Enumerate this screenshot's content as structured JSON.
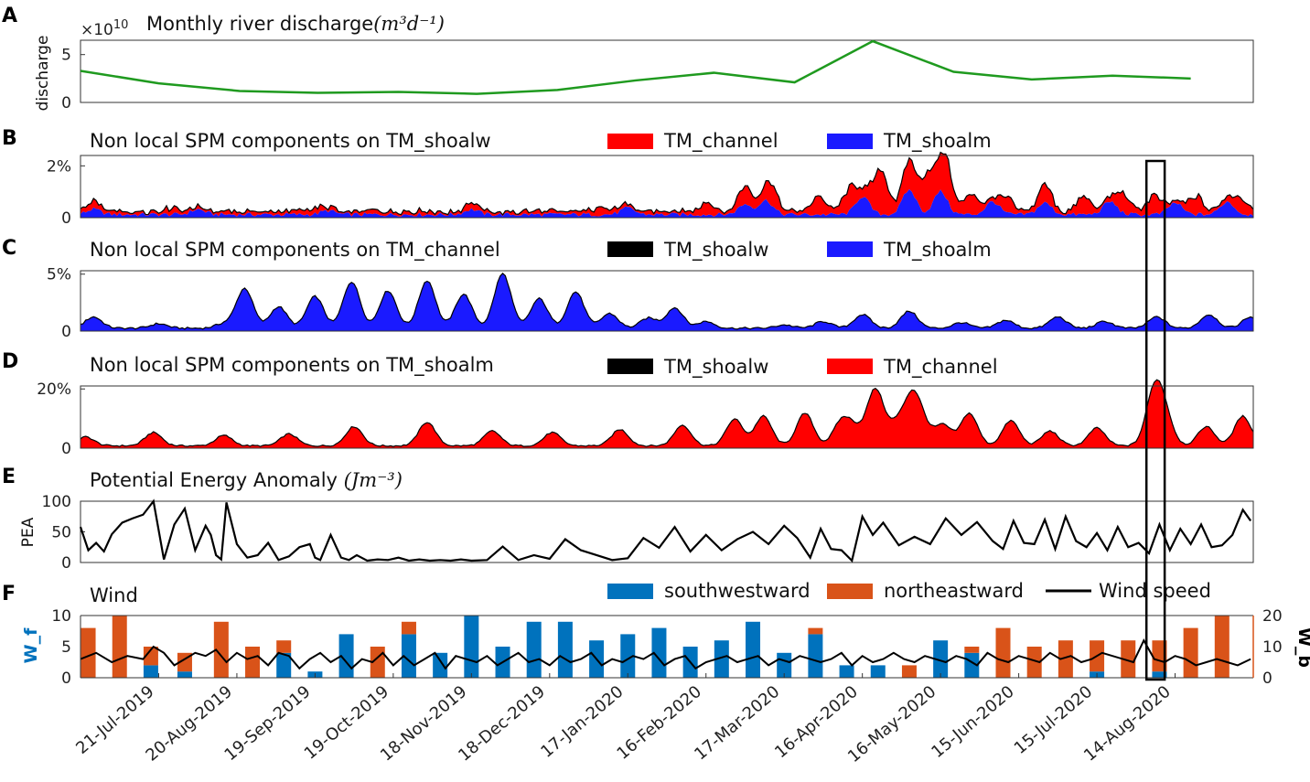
{
  "figure": {
    "panel_letters": [
      "A",
      "B",
      "C",
      "D",
      "E",
      "F"
    ],
    "x_dates": [
      "21-Jul-2019",
      "20-Aug-2019",
      "19-Sep-2019",
      "19-Oct-2019",
      "18-Nov-2019",
      "18-Dec-2019",
      "17-Jan-2020",
      "16-Feb-2020",
      "17-Mar-2020",
      "16-Apr-2020",
      "16-May-2020",
      "15-Jun-2020",
      "15-Jul-2020",
      "14-Aug-2020"
    ],
    "highlight_box": {
      "from_day": 409,
      "to_day": 416
    }
  },
  "colors": {
    "green": "#1f9a1f",
    "red": "#ff0000",
    "blue": "#1a1aff",
    "black": "#000000",
    "wind_sw": "#0072bd",
    "wind_ne": "#d95319",
    "wind_b_axis": "#d95319"
  },
  "chart_data": [
    {
      "id": "A",
      "type": "line",
      "title": "Monthly river discharge",
      "title_unit": "(m³d⁻¹)",
      "exponent_base": "×10",
      "exponent_power": "10",
      "ylabel": "discharge",
      "ylim": [
        0,
        6.5
      ],
      "yticks": [
        "0",
        "5"
      ],
      "x_day": [
        0,
        30,
        61,
        91,
        122,
        152,
        183,
        213,
        243,
        274,
        304,
        335,
        365,
        396,
        426
      ],
      "values": [
        3.3,
        2.0,
        1.2,
        1.0,
        1.1,
        0.9,
        1.3,
        2.3,
        3.1,
        2.1,
        6.4,
        3.2,
        2.4,
        2.8,
        2.5
      ]
    },
    {
      "id": "B",
      "type": "area",
      "title": "Non local SPM components on TM_shoalw",
      "legend": [
        {
          "label": "TM_channel",
          "color": "#ff0000"
        },
        {
          "label": "TM_shoalm",
          "color": "#1a1aff"
        }
      ],
      "ylim": [
        0,
        2.4
      ],
      "yticks": [
        "0",
        "2%"
      ],
      "base": 0.12,
      "base_noise": 0.08,
      "series": [
        {
          "name": "TM_shoalm",
          "peaks": [
            [
              5,
              0.2
            ],
            [
              45,
              0.2
            ],
            [
              95,
              0.15
            ],
            [
              150,
              0.2
            ],
            [
              210,
              0.25
            ],
            [
              255,
              0.4
            ],
            [
              263,
              0.55
            ],
            [
              300,
              0.7
            ],
            [
              318,
              0.95
            ],
            [
              330,
              0.9
            ],
            [
              350,
              0.5
            ],
            [
              370,
              0.45
            ],
            [
              395,
              0.5
            ],
            [
              420,
              0.45
            ],
            [
              440,
              0.5
            ]
          ]
        },
        {
          "name": "TM_channel",
          "peaks": [
            [
              5,
              0.15
            ],
            [
              35,
              0.15
            ],
            [
              90,
              0.1
            ],
            [
              150,
              0.15
            ],
            [
              200,
              0.2
            ],
            [
              240,
              0.35
            ],
            [
              255,
              0.6
            ],
            [
              265,
              0.7
            ],
            [
              283,
              0.6
            ],
            [
              295,
              0.8
            ],
            [
              305,
              0.7
            ],
            [
              308,
              1.1
            ],
            [
              318,
              1.0
            ],
            [
              325,
              1.3
            ],
            [
              332,
              1.5
            ],
            [
              342,
              0.7
            ],
            [
              355,
              0.5
            ],
            [
              370,
              0.6
            ],
            [
              385,
              0.6
            ],
            [
              400,
              0.6
            ],
            [
              412,
              0.6
            ],
            [
              428,
              0.6
            ],
            [
              445,
              0.5
            ]
          ]
        }
      ]
    },
    {
      "id": "C",
      "type": "area",
      "title": "Non local SPM components on TM_channel",
      "legend": [
        {
          "label": "TM_shoalw",
          "color": "#000000"
        },
        {
          "label": "TM_shoalm",
          "color": "#1a1aff"
        }
      ],
      "ylim": [
        0,
        5.3
      ],
      "yticks": [
        "0",
        "5%"
      ],
      "series": [
        {
          "name": "TM_shoalm",
          "base": 0.25,
          "peaks": [
            [
              5,
              1.0
            ],
            [
              30,
              0.4
            ],
            [
              55,
              0.4
            ],
            [
              63,
              3.5
            ],
            [
              76,
              1.9
            ],
            [
              90,
              2.8
            ],
            [
              104,
              4.1
            ],
            [
              118,
              3.3
            ],
            [
              133,
              4.2
            ],
            [
              147,
              3.0
            ],
            [
              162,
              4.8
            ],
            [
              176,
              2.6
            ],
            [
              190,
              3.2
            ],
            [
              203,
              1.3
            ],
            [
              218,
              0.9
            ],
            [
              228,
              1.8
            ],
            [
              240,
              0.6
            ],
            [
              270,
              0.3
            ],
            [
              285,
              0.6
            ],
            [
              300,
              1.2
            ],
            [
              318,
              1.5
            ],
            [
              338,
              0.5
            ],
            [
              355,
              0.7
            ],
            [
              375,
              1.0
            ],
            [
              393,
              0.6
            ],
            [
              413,
              1.0
            ],
            [
              433,
              1.2
            ],
            [
              449,
              1.0
            ]
          ]
        }
      ]
    },
    {
      "id": "D",
      "type": "area",
      "title": "Non local SPM components on TM_shoalm",
      "legend": [
        {
          "label": "TM_shoalw",
          "color": "#000000"
        },
        {
          "label": "TM_channel",
          "color": "#ff0000"
        }
      ],
      "ylim": [
        0,
        21
      ],
      "yticks": [
        "0",
        "20%"
      ],
      "series": [
        {
          "name": "TM_channel",
          "base": 0.8,
          "peaks": [
            [
              2,
              3.0
            ],
            [
              28,
              4.5
            ],
            [
              55,
              3.5
            ],
            [
              80,
              4.0
            ],
            [
              105,
              6.5
            ],
            [
              133,
              8.0
            ],
            [
              158,
              5.0
            ],
            [
              181,
              4.5
            ],
            [
              207,
              5.5
            ],
            [
              231,
              7.0
            ],
            [
              251,
              9.0
            ],
            [
              262,
              10.0
            ],
            [
              278,
              11.0
            ],
            [
              292,
              8.0
            ],
            [
              297,
              5.0
            ],
            [
              305,
              19.0
            ],
            [
              313,
              6.5
            ],
            [
              319,
              15.0
            ],
            [
              323,
              6.0
            ],
            [
              331,
              7.0
            ],
            [
              341,
              11.0
            ],
            [
              357,
              8.5
            ],
            [
              372,
              5.0
            ],
            [
              390,
              6.0
            ],
            [
              412,
              17.5
            ],
            [
              416,
              9.0
            ],
            [
              432,
              6.5
            ],
            [
              446,
              10.0
            ]
          ]
        }
      ]
    },
    {
      "id": "E",
      "type": "line",
      "title": "Potential Energy Anomaly",
      "title_unit": "(Jm⁻³)",
      "ylabel": "PEA",
      "ylim": [
        0,
        100
      ],
      "yticks": [
        "0",
        "50",
        "100"
      ],
      "x_day": [
        0,
        3,
        6,
        9,
        12,
        16,
        20,
        24,
        28,
        32,
        36,
        40,
        44,
        48,
        50,
        52,
        54,
        56,
        60,
        64,
        68,
        72,
        76,
        80,
        84,
        88,
        90,
        92,
        96,
        100,
        103,
        106,
        110,
        114,
        118,
        122,
        126,
        130,
        134,
        138,
        142,
        146,
        150,
        156,
        162,
        168,
        174,
        180,
        186,
        192,
        198,
        204,
        210,
        216,
        222,
        228,
        234,
        240,
        246,
        252,
        258,
        264,
        270,
        275,
        280,
        284,
        288,
        292,
        296,
        300,
        304,
        308,
        314,
        320,
        326,
        332,
        338,
        344,
        350,
        354,
        358,
        362,
        366,
        370,
        374,
        378,
        382,
        386,
        390,
        394,
        398,
        402,
        406,
        410,
        414,
        418,
        422,
        426,
        430,
        434,
        438,
        442,
        446,
        449
      ],
      "values": [
        58,
        20,
        32,
        18,
        46,
        65,
        72,
        78,
        100,
        5,
        62,
        88,
        20,
        60,
        45,
        12,
        5,
        98,
        30,
        8,
        12,
        32,
        4,
        10,
        25,
        30,
        8,
        4,
        45,
        8,
        4,
        12,
        3,
        5,
        4,
        8,
        3,
        5,
        3,
        4,
        3,
        5,
        3,
        4,
        26,
        4,
        12,
        6,
        38,
        20,
        12,
        4,
        7,
        40,
        24,
        58,
        18,
        45,
        20,
        38,
        50,
        30,
        60,
        40,
        8,
        55,
        22,
        20,
        3,
        75,
        45,
        65,
        28,
        42,
        30,
        72,
        45,
        66,
        35,
        22,
        68,
        32,
        30,
        70,
        22,
        75,
        35,
        25,
        48,
        20,
        58,
        25,
        32,
        15,
        62,
        20,
        55,
        30,
        62,
        25,
        28,
        45,
        86,
        68
      ]
    },
    {
      "id": "F",
      "type": "bar",
      "title": "Wind",
      "legend": [
        {
          "label": "southwestward",
          "color": "#0072bd"
        },
        {
          "label": "northeastward",
          "color": "#d95319"
        },
        {
          "label": "Wind speed",
          "color": "#000000"
        }
      ],
      "ylabel_left": "W_f",
      "ylabel_right": "W_b",
      "ylim_left": [
        0,
        10
      ],
      "yticks_left": [
        "0",
        "5",
        "10"
      ],
      "ylim_right": [
        0,
        20
      ],
      "yticks_right": [
        "0",
        "10",
        "20"
      ],
      "bars": [
        {
          "day": 3,
          "sw": 0,
          "ne": 8
        },
        {
          "day": 15,
          "sw": 0,
          "ne": 10
        },
        {
          "day": 27,
          "sw": 2,
          "ne": 3
        },
        {
          "day": 40,
          "sw": 1,
          "ne": 3
        },
        {
          "day": 54,
          "sw": 0,
          "ne": 9
        },
        {
          "day": 66,
          "sw": 0,
          "ne": 5
        },
        {
          "day": 78,
          "sw": 4,
          "ne": 2
        },
        {
          "day": 90,
          "sw": 1,
          "ne": 0
        },
        {
          "day": 102,
          "sw": 7,
          "ne": 0
        },
        {
          "day": 114,
          "sw": 0,
          "ne": 5
        },
        {
          "day": 126,
          "sw": 7,
          "ne": 2
        },
        {
          "day": 138,
          "sw": 4,
          "ne": 0
        },
        {
          "day": 150,
          "sw": 10,
          "ne": 0
        },
        {
          "day": 162,
          "sw": 5,
          "ne": 0
        },
        {
          "day": 174,
          "sw": 9,
          "ne": 0
        },
        {
          "day": 186,
          "sw": 9,
          "ne": 0
        },
        {
          "day": 198,
          "sw": 6,
          "ne": 0
        },
        {
          "day": 210,
          "sw": 7,
          "ne": 0
        },
        {
          "day": 222,
          "sw": 8,
          "ne": 0
        },
        {
          "day": 234,
          "sw": 5,
          "ne": 0
        },
        {
          "day": 246,
          "sw": 6,
          "ne": 0
        },
        {
          "day": 258,
          "sw": 9,
          "ne": 0
        },
        {
          "day": 270,
          "sw": 4,
          "ne": 0
        },
        {
          "day": 282,
          "sw": 7,
          "ne": 1
        },
        {
          "day": 294,
          "sw": 2,
          "ne": 0
        },
        {
          "day": 306,
          "sw": 2,
          "ne": 0
        },
        {
          "day": 318,
          "sw": 0,
          "ne": 2
        },
        {
          "day": 330,
          "sw": 6,
          "ne": 0
        },
        {
          "day": 342,
          "sw": 4,
          "ne": 1
        },
        {
          "day": 354,
          "sw": 0,
          "ne": 8
        },
        {
          "day": 366,
          "sw": 0,
          "ne": 5
        },
        {
          "day": 378,
          "sw": 0,
          "ne": 6
        },
        {
          "day": 390,
          "sw": 1,
          "ne": 5
        },
        {
          "day": 402,
          "sw": 0,
          "ne": 6
        },
        {
          "day": 414,
          "sw": 1,
          "ne": 5
        },
        {
          "day": 426,
          "sw": 0,
          "ne": 8
        },
        {
          "day": 438,
          "sw": 0,
          "ne": 10
        }
      ],
      "wind_speed": {
        "x_day": [
          0,
          6,
          12,
          18,
          24,
          28,
          32,
          36,
          40,
          44,
          48,
          52,
          56,
          60,
          64,
          68,
          72,
          76,
          80,
          84,
          88,
          92,
          96,
          100,
          104,
          108,
          112,
          116,
          120,
          124,
          128,
          132,
          136,
          140,
          144,
          148,
          152,
          156,
          160,
          164,
          168,
          172,
          176,
          180,
          184,
          188,
          192,
          196,
          200,
          204,
          208,
          212,
          216,
          220,
          224,
          228,
          232,
          236,
          240,
          244,
          248,
          252,
          256,
          260,
          264,
          268,
          272,
          276,
          280,
          284,
          288,
          292,
          296,
          300,
          304,
          308,
          312,
          316,
          320,
          324,
          328,
          332,
          336,
          340,
          344,
          348,
          352,
          356,
          360,
          364,
          368,
          372,
          376,
          380,
          384,
          388,
          392,
          396,
          400,
          404,
          408,
          412,
          416,
          420,
          424,
          428,
          432,
          436,
          440,
          444,
          449
        ],
        "values": [
          6,
          8,
          5,
          7,
          6,
          10,
          8,
          4,
          6,
          8,
          7,
          9,
          5,
          8,
          6,
          7,
          4,
          8,
          7,
          3,
          6,
          8,
          5,
          7,
          3,
          6,
          5,
          8,
          4,
          7,
          4,
          6,
          8,
          3,
          7,
          6,
          5,
          7,
          4,
          6,
          8,
          5,
          6,
          4,
          7,
          5,
          6,
          8,
          4,
          6,
          5,
          7,
          6,
          8,
          4,
          6,
          7,
          3,
          5,
          6,
          7,
          5,
          6,
          7,
          4,
          6,
          5,
          7,
          6,
          5,
          6,
          8,
          4,
          7,
          5,
          6,
          8,
          6,
          5,
          7,
          6,
          5,
          7,
          6,
          4,
          8,
          6,
          5,
          7,
          6,
          5,
          8,
          6,
          7,
          5,
          6,
          8,
          7,
          6,
          5,
          12,
          6,
          5,
          7,
          6,
          4,
          5,
          6,
          5,
          4,
          6
        ]
      }
    }
  ]
}
